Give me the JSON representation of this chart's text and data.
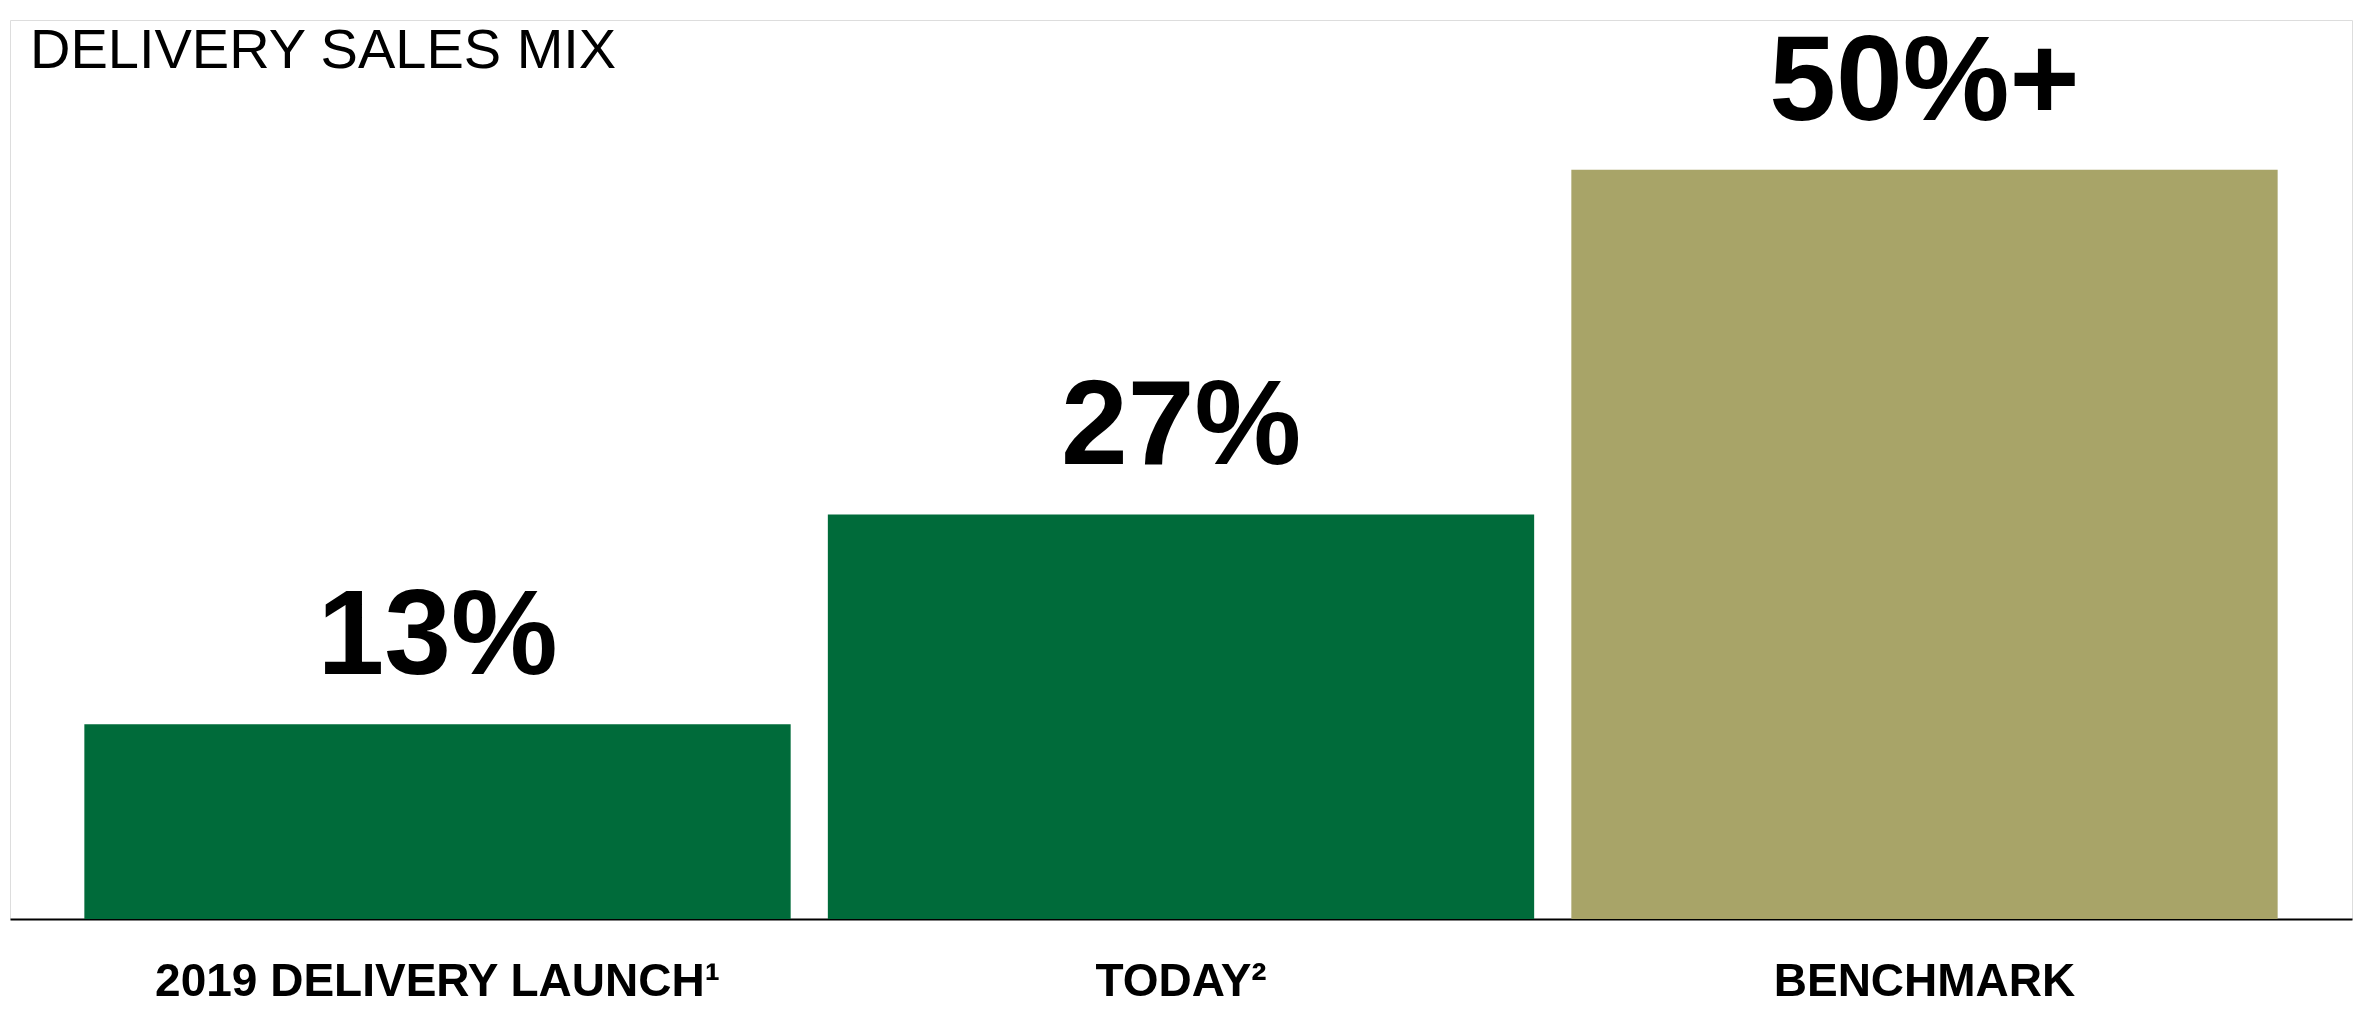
{
  "chart_data": {
    "type": "bar",
    "title": "DELIVERY SALES MIX",
    "categories": [
      "2019 DELIVERY LAUNCH¹",
      "TODAY²",
      "BENCHMARK"
    ],
    "values": [
      13,
      27,
      50
    ],
    "colors": [
      "#006b3a",
      "#006b3a",
      "#a8a468"
    ],
    "value_labels": [
      "13%",
      "27%",
      "50%+"
    ]
  }
}
